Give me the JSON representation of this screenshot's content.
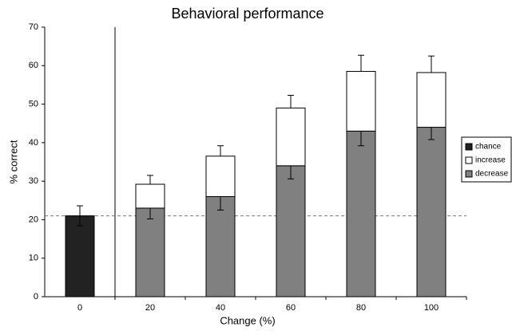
{
  "chart_data": {
    "type": "stacked-bar",
    "title": "Behavioral performance",
    "x_label": "Change (%)",
    "y_label": "% correct",
    "categories": [
      "0",
      "20",
      "40",
      "60",
      "80",
      "100"
    ],
    "series": [
      {
        "name": "chance",
        "color": "#222222",
        "values": [
          21,
          null,
          null,
          null,
          null,
          null
        ],
        "errors": [
          2.6,
          null,
          null,
          null,
          null,
          null
        ]
      },
      {
        "name": "increase",
        "color": "#ffffff",
        "values": [
          null,
          6.2,
          10.5,
          15,
          15.5,
          14.2
        ],
        "errors": [
          null,
          2.3,
          2.7,
          3.3,
          4.2,
          4.3
        ]
      },
      {
        "name": "decrease",
        "color": "#808080",
        "values": [
          null,
          23,
          26,
          34,
          43,
          44
        ],
        "errors": [
          null,
          2.8,
          3.5,
          3.4,
          3.8,
          3.2
        ]
      }
    ],
    "reference_line": 21,
    "ylim": [
      0,
      70
    ],
    "yticks": [
      0,
      10,
      20,
      30,
      40,
      50,
      60,
      70
    ],
    "legend": "right"
  }
}
